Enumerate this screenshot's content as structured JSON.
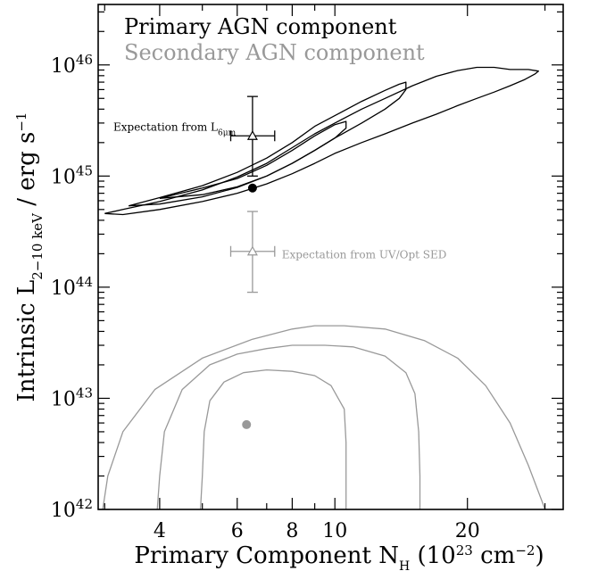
{
  "chart_data": {
    "type": "scatter",
    "title": "",
    "xlabel": "Primary Component N",
    "xlabel_sub": "H",
    "xlabel_units_pre": " (10",
    "xlabel_units_exp": "23",
    "xlabel_units_mid": " cm",
    "xlabel_units_exp2": "−2",
    "xlabel_units_post": ")",
    "ylabel_pre": "Intrinsic L",
    "ylabel_sub": "2−10 keV",
    "ylabel_mid": " / erg s",
    "ylabel_exp": "−1",
    "xscale": "log",
    "yscale": "log",
    "xlim": [
      2.9,
      33
    ],
    "ylim": [
      1e+42,
      3.5e+46
    ],
    "x_ticks": [
      {
        "value": 4,
        "label": "4"
      },
      {
        "value": 6,
        "label": "6"
      },
      {
        "value": 8,
        "label": "8"
      },
      {
        "value": 10,
        "label": "10"
      },
      {
        "value": 20,
        "label": "20"
      }
    ],
    "y_ticks": [
      {
        "value": 1e+42,
        "base": "10",
        "exp": "42"
      },
      {
        "value": 1e+43,
        "base": "10",
        "exp": "43"
      },
      {
        "value": 1e+44,
        "base": "10",
        "exp": "44"
      },
      {
        "value": 1e+45,
        "base": "10",
        "exp": "45"
      },
      {
        "value": 1e+46,
        "base": "10",
        "exp": "46"
      }
    ],
    "legend": {
      "placement": "top-left",
      "entries": [
        {
          "label": "Primary AGN component",
          "color": "#000000"
        },
        {
          "label": "Secondary AGN component",
          "color": "#999999"
        }
      ]
    },
    "series": [
      {
        "name": "Primary AGN component",
        "color": "#000000",
        "best_fit": {
          "x": 6.5,
          "y": 7.8e+44
        },
        "contours": [
          [
            [
              3.0,
              4.6e+44
            ],
            [
              3.3,
              5e+44
            ],
            [
              4.0,
              5.9e+44
            ],
            [
              5.0,
              7.5e+44
            ],
            [
              6.0,
              9.8e+44
            ],
            [
              7.0,
              1.3e+45
            ],
            [
              8.0,
              1.8e+45
            ],
            [
              9.0,
              2.4e+45
            ],
            [
              10.0,
              3e+45
            ],
            [
              11.5,
              4e+45
            ],
            [
              13.0,
              5e+45
            ],
            [
              15.0,
              6.5e+45
            ],
            [
              17.0,
              7.9e+45
            ],
            [
              19.0,
              8.9e+45
            ],
            [
              21.0,
              9.5e+45
            ],
            [
              23.0,
              9.5e+45
            ],
            [
              25.0,
              9.1e+45
            ],
            [
              27.5,
              9.1e+45
            ],
            [
              29.0,
              8.8e+45
            ],
            [
              28.5,
              8.3e+45
            ],
            [
              27.0,
              7.4e+45
            ],
            [
              25.0,
              6.5e+45
            ],
            [
              23.0,
              5.7e+45
            ],
            [
              21.0,
              5e+45
            ],
            [
              19.0,
              4.3e+45
            ],
            [
              17.0,
              3.6e+45
            ],
            [
              15.0,
              3e+45
            ],
            [
              13.0,
              2.4e+45
            ],
            [
              11.5,
              2e+45
            ],
            [
              10.0,
              1.6e+45
            ],
            [
              9.0,
              1.3e+45
            ],
            [
              8.0,
              1.05e+45
            ],
            [
              7.0,
              8.5e+44
            ],
            [
              6.0,
              7e+44
            ],
            [
              5.0,
              5.9e+44
            ],
            [
              4.0,
              5e+44
            ],
            [
              3.3,
              4.5e+44
            ],
            [
              3.0,
              4.6e+44
            ]
          ],
          [
            [
              3.4,
              5.4e+44
            ],
            [
              4.0,
              6.4e+44
            ],
            [
              5.0,
              8.2e+44
            ],
            [
              6.0,
              1.08e+45
            ],
            [
              7.0,
              1.45e+45
            ],
            [
              8.0,
              2e+45
            ],
            [
              9.0,
              2.8e+45
            ],
            [
              10.0,
              3.5e+45
            ],
            [
              11.5,
              4.7e+45
            ],
            [
              13.0,
              5.9e+45
            ],
            [
              14.0,
              6.7e+45
            ],
            [
              14.5,
              7e+45
            ],
            [
              14.5,
              6e+45
            ],
            [
              14.0,
              5e+45
            ],
            [
              13.0,
              4e+45
            ],
            [
              11.5,
              3e+45
            ],
            [
              10.0,
              2.2e+45
            ],
            [
              9.0,
              1.7e+45
            ],
            [
              8.0,
              1.3e+45
            ],
            [
              7.0,
              1e+45
            ],
            [
              6.0,
              7.9e+44
            ],
            [
              5.0,
              6.5e+44
            ],
            [
              4.0,
              5.6e+44
            ],
            [
              3.4,
              5.4e+44
            ]
          ],
          [
            [
              4.0,
              6.3e+44
            ],
            [
              5.0,
              7.8e+44
            ],
            [
              6.0,
              9.5e+44
            ],
            [
              7.0,
              1.25e+45
            ],
            [
              8.0,
              1.7e+45
            ],
            [
              9.0,
              2.3e+45
            ],
            [
              10.0,
              2.9e+45
            ],
            [
              10.6,
              3.1e+45
            ],
            [
              10.6,
              2.7e+45
            ],
            [
              10.0,
              2.2e+45
            ],
            [
              9.0,
              1.7e+45
            ],
            [
              8.0,
              1.3e+45
            ],
            [
              7.0,
              1e+45
            ],
            [
              6.0,
              8e+44
            ],
            [
              5.0,
              6.8e+44
            ],
            [
              4.0,
              6.3e+44
            ]
          ]
        ]
      },
      {
        "name": "Secondary AGN component",
        "color": "#999999",
        "best_fit": {
          "x": 6.3,
          "y": 5.8e+42
        },
        "contours": [
          [
            [
              2.97,
              1e+42
            ],
            [
              3.05,
              2e+42
            ],
            [
              3.3,
              5e+42
            ],
            [
              3.9,
              1.2e+43
            ],
            [
              5.0,
              2.3e+43
            ],
            [
              6.5,
              3.4e+43
            ],
            [
              8.0,
              4.2e+43
            ],
            [
              9.0,
              4.5e+43
            ],
            [
              10.5,
              4.5e+43
            ],
            [
              13.0,
              4.2e+43
            ],
            [
              16.0,
              3.3e+43
            ],
            [
              19.0,
              2.3e+43
            ],
            [
              22.0,
              1.3e+43
            ],
            [
              25.0,
              6e+42
            ],
            [
              27.5,
              2.5e+42
            ],
            [
              29.5,
              1.2e+42
            ],
            [
              30.0,
              1e+42
            ]
          ],
          [
            [
              3.95,
              1e+42
            ],
            [
              4.0,
              2e+42
            ],
            [
              4.1,
              5e+42
            ],
            [
              4.5,
              1.2e+43
            ],
            [
              5.2,
              2e+43
            ],
            [
              6.0,
              2.5e+43
            ],
            [
              7.0,
              2.8e+43
            ],
            [
              8.0,
              3e+43
            ],
            [
              9.5,
              3e+43
            ],
            [
              11.0,
              2.9e+43
            ],
            [
              13.0,
              2.4e+43
            ],
            [
              14.5,
              1.7e+43
            ],
            [
              15.2,
              1.1e+43
            ],
            [
              15.5,
              5e+42
            ],
            [
              15.6,
              2e+42
            ],
            [
              15.6,
              1e+42
            ]
          ],
          [
            [
              4.95,
              1e+42
            ],
            [
              5.0,
              2e+42
            ],
            [
              5.05,
              5e+42
            ],
            [
              5.2,
              9.5e+42
            ],
            [
              5.6,
              1.4e+43
            ],
            [
              6.2,
              1.7e+43
            ],
            [
              7.0,
              1.8e+43
            ],
            [
              8.0,
              1.75e+43
            ],
            [
              9.0,
              1.6e+43
            ],
            [
              9.8,
              1.3e+43
            ],
            [
              10.5,
              8e+42
            ],
            [
              10.6,
              4e+42
            ],
            [
              10.6,
              2e+42
            ],
            [
              10.6,
              1e+42
            ]
          ]
        ]
      }
    ],
    "annotations": [
      {
        "label_pre": "Expectation from L",
        "label_sub": "6μm",
        "color": "#000000",
        "x": 6.5,
        "y": 2.3e+45,
        "xerr": [
          5.8,
          7.3
        ],
        "yerr": [
          1e+45,
          5.2e+45
        ]
      },
      {
        "label_pre": "Expectation from UV/Opt SED",
        "label_sub": "",
        "color": "#999999",
        "x": 6.5,
        "y": 2.1e+44,
        "xerr": [
          5.8,
          7.3
        ],
        "yerr": [
          9e+43,
          4.8e+44
        ]
      }
    ]
  }
}
